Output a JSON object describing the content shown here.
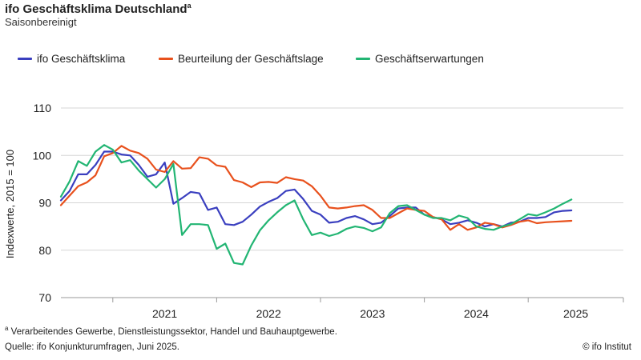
{
  "chart_data": {
    "type": "line",
    "title": "ifo Geschäftsklima Deutschland",
    "title_marker": "a",
    "subtitle": "Saisonbereinigt",
    "ylabel": "Indexwerte, 2015 = 100",
    "xlabel": "",
    "ylim": [
      70,
      110
    ],
    "yticks": [
      70,
      80,
      90,
      100,
      110
    ],
    "xticks": [
      "2021",
      "2022",
      "2023",
      "2024",
      "2025"
    ],
    "x_start": "2020-07",
    "x_end": "2025-12",
    "grid": "horizontal",
    "legend_position": "top",
    "x": [
      "2020-07",
      "2020-08",
      "2020-09",
      "2020-10",
      "2020-11",
      "2020-12",
      "2021-01",
      "2021-02",
      "2021-03",
      "2021-04",
      "2021-05",
      "2021-06",
      "2021-07",
      "2021-08",
      "2021-09",
      "2021-10",
      "2021-11",
      "2021-12",
      "2022-01",
      "2022-02",
      "2022-03",
      "2022-04",
      "2022-05",
      "2022-06",
      "2022-07",
      "2022-08",
      "2022-09",
      "2022-10",
      "2022-11",
      "2022-12",
      "2023-01",
      "2023-02",
      "2023-03",
      "2023-04",
      "2023-05",
      "2023-06",
      "2023-07",
      "2023-08",
      "2023-09",
      "2023-10",
      "2023-11",
      "2023-12",
      "2024-01",
      "2024-02",
      "2024-03",
      "2024-04",
      "2024-05",
      "2024-06",
      "2024-07",
      "2024-08",
      "2024-09",
      "2024-10",
      "2024-11",
      "2024-12",
      "2025-01",
      "2025-02",
      "2025-03",
      "2025-04",
      "2025-05",
      "2025-06"
    ],
    "series": [
      {
        "name": "ifo Geschäftsklima",
        "color": "#3a3fbf",
        "values": [
          90.5,
          92.5,
          96.0,
          96.0,
          98.0,
          100.8,
          100.8,
          100.2,
          100.0,
          98.0,
          95.5,
          96.0,
          98.5,
          89.8,
          91.0,
          92.3,
          92.0,
          88.5,
          89.0,
          85.5,
          85.3,
          86.0,
          87.5,
          89.2,
          90.2,
          91.0,
          92.5,
          92.8,
          90.8,
          88.3,
          87.5,
          85.8,
          86.0,
          86.8,
          87.2,
          86.5,
          85.5,
          85.8,
          87.2,
          88.8,
          89.0,
          89.0,
          87.5,
          87.0,
          86.5,
          85.5,
          85.8,
          86.3,
          85.8,
          85.0,
          85.5,
          85.0,
          85.8,
          86.0,
          86.8,
          86.8,
          87.0,
          88.0,
          88.3,
          88.4
        ]
      },
      {
        "name": "Beurteilung der Geschäftslage",
        "color": "#e8511d",
        "values": [
          89.5,
          91.5,
          93.5,
          94.3,
          95.8,
          99.8,
          100.5,
          102.0,
          101.0,
          100.5,
          99.3,
          97.0,
          96.5,
          98.8,
          97.2,
          97.3,
          99.6,
          99.3,
          97.9,
          97.6,
          94.8,
          94.3,
          93.3,
          94.3,
          94.4,
          94.2,
          95.4,
          95.0,
          94.7,
          93.5,
          91.5,
          89.0,
          88.8,
          89.0,
          89.3,
          89.5,
          88.5,
          86.8,
          86.8,
          87.8,
          88.8,
          88.5,
          88.3,
          87.0,
          86.5,
          84.3,
          85.5,
          84.3,
          84.8,
          85.8,
          85.5,
          84.8,
          85.3,
          86.0,
          86.3,
          85.7,
          85.9,
          86.0,
          86.1,
          86.2
        ]
      },
      {
        "name": "Geschäftserwartungen",
        "color": "#22b573",
        "values": [
          91.3,
          94.5,
          98.8,
          97.8,
          100.8,
          102.2,
          101.2,
          98.5,
          99.0,
          96.8,
          95.0,
          93.2,
          95.0,
          98.2,
          83.2,
          85.5,
          85.5,
          85.3,
          80.3,
          81.4,
          77.3,
          77.0,
          81.0,
          84.2,
          86.3,
          88.0,
          89.5,
          90.5,
          86.5,
          83.2,
          83.7,
          83.0,
          83.5,
          84.5,
          85.0,
          84.7,
          84.0,
          84.8,
          87.8,
          89.3,
          89.5,
          88.5,
          87.5,
          86.8,
          86.8,
          86.3,
          87.3,
          86.8,
          85.0,
          84.5,
          84.3,
          85.0,
          85.5,
          86.5,
          87.6,
          87.3,
          88.0,
          88.8,
          89.8,
          90.7
        ]
      }
    ],
    "footnote_marker": "a",
    "footnote": "Verarbeitendes Gewerbe, Dienstleistungssektor, Handel und Bauhauptgewerbe.",
    "source": "Quelle: ifo Konjunkturumfragen, Juni 2025.",
    "credit": "© ifo Institut"
  }
}
